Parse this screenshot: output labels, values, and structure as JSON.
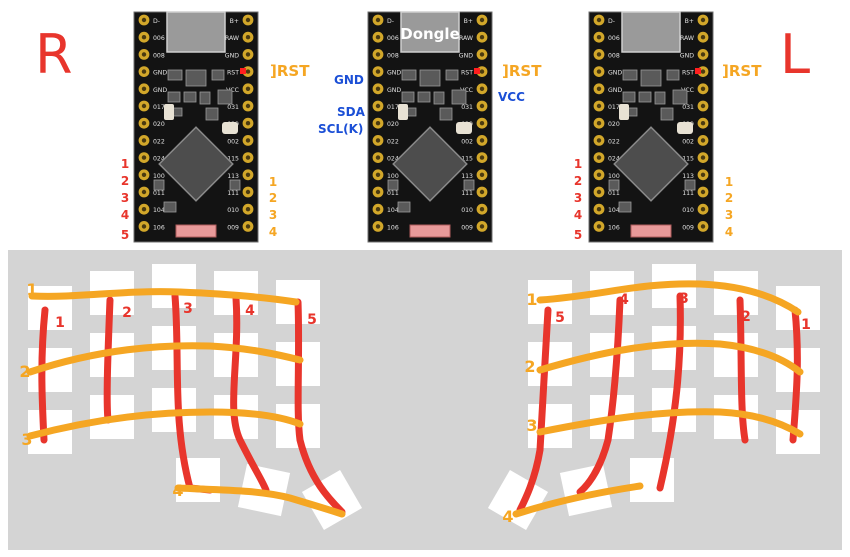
{
  "side_labels": {
    "right": "R",
    "left": "L"
  },
  "colors": {
    "red": "#e8352c",
    "orange": "#f5a623",
    "blue": "#1b4fd6",
    "pcb": "#131313",
    "gold": "#d2a72a",
    "plate": "#d4d4d4"
  },
  "boards": {
    "right": {
      "left_pins": [
        "D-",
        "006",
        "008",
        "GND",
        "GND",
        "017",
        "020",
        "022",
        "024",
        "100",
        "011",
        "104",
        "106"
      ],
      "right_pins": [
        "B+",
        "RAW",
        "GND",
        "RST",
        "VCC",
        "031",
        "029",
        "002",
        "115",
        "113",
        "111",
        "010",
        "009"
      ]
    },
    "dongle": {
      "title": "Dongle",
      "left_pins": [
        "D-",
        "006",
        "008",
        "GND",
        "GND",
        "017",
        "020",
        "022",
        "024",
        "100",
        "011",
        "104",
        "106"
      ],
      "right_pins": [
        "B+",
        "RAW",
        "GND",
        "RST",
        "VCC",
        "031",
        "029",
        "002",
        "115",
        "113",
        "111",
        "010",
        "009"
      ]
    },
    "left": {
      "left_pins": [
        "D-",
        "006",
        "008",
        "GND",
        "GND",
        "017",
        "020",
        "022",
        "024",
        "100",
        "011",
        "104",
        "106"
      ],
      "right_pins": [
        "B+",
        "RAW",
        "GND",
        "RST",
        "VCC",
        "031",
        "029",
        "002",
        "115",
        "113",
        "111",
        "010",
        "009"
      ]
    }
  },
  "annotations": {
    "rst_label": "]RST",
    "dongle_gnd": "GND",
    "dongle_sda": "SDA",
    "dongle_scl": "SCL(K)",
    "dongle_vcc": "VCC",
    "right_board_col_pins": [
      "1",
      "2",
      "3",
      "4",
      "5"
    ],
    "right_board_row_pins": [
      "1",
      "2",
      "3",
      "4"
    ],
    "left_board_col_pins": [
      "1",
      "2",
      "3",
      "4",
      "5"
    ],
    "left_board_row_pins": [
      "1",
      "2",
      "3",
      "4"
    ]
  },
  "keyboard": {
    "right_row_labels": [
      "1",
      "2",
      "3",
      "4"
    ],
    "right_col_labels": [
      "1",
      "2",
      "3",
      "4",
      "5"
    ],
    "left_row_labels": [
      "1",
      "2",
      "3",
      "4"
    ],
    "left_col_labels": [
      "5",
      "4",
      "3",
      "2",
      "1"
    ]
  }
}
